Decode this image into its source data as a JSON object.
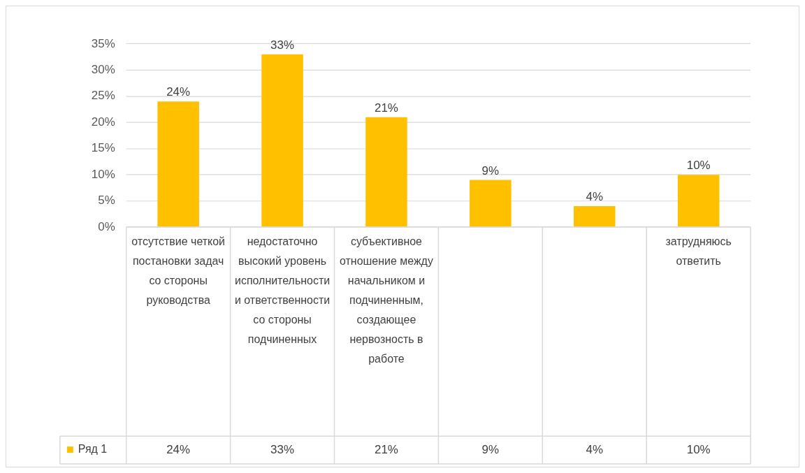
{
  "chart_data": {
    "type": "bar",
    "categories": [
      "отсутствие четкой постановки задач со стороны руководства",
      "недостаточно высокий уровень исполнительности и ответственности со стороны подчиненных",
      "субъективное отношение между начальником и подчиненным, создающее нервозность в работе",
      null,
      null,
      "затрудняюсь ответить"
    ],
    "series": [
      {
        "name": "Ряд 1",
        "color": "#ffc000",
        "values": [
          24,
          33,
          21,
          9,
          4,
          10
        ],
        "value_labels": [
          "24%",
          "33%",
          "21%",
          "9%",
          "4%",
          "10%"
        ]
      }
    ],
    "ylim": [
      0,
      35
    ],
    "yticks": [
      {
        "value": 0,
        "label": "0%"
      },
      {
        "value": 5,
        "label": "5%"
      },
      {
        "value": 10,
        "label": "10%"
      },
      {
        "value": 15,
        "label": "15%"
      },
      {
        "value": 20,
        "label": "20%"
      },
      {
        "value": 25,
        "label": "25%"
      },
      {
        "value": 30,
        "label": "30%"
      },
      {
        "value": 35,
        "label": "35%"
      }
    ],
    "grid": "y",
    "legend": "bottom left"
  }
}
